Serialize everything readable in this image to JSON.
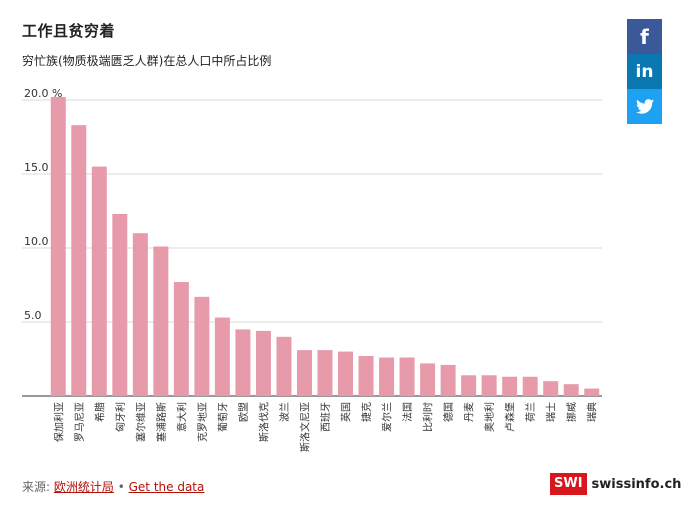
{
  "title": "工作且贫穷着",
  "subtitle": "穷忙族(物质极端匮乏人群)在总人口中所占比例",
  "source": {
    "label": "来源:",
    "link_text": "欧洲统计局",
    "separator": "•",
    "data_link_text": "Get the data"
  },
  "share": {
    "facebook_glyph": "f",
    "linkedin_glyph": "in"
  },
  "brand": {
    "logo_text": "SWI",
    "name": "swissinfo.ch"
  },
  "colors": {
    "bar": "#e79aaa",
    "grid": "#d9d9d9",
    "axis": "#333333"
  },
  "chart_data": {
    "type": "bar",
    "title": "工作且贫穷着",
    "subtitle": "穷忙族(物质极端匮乏人群)在总人口中所占比例",
    "categories": [
      "保加利亚",
      "罗马尼亚",
      "希腊",
      "匈牙利",
      "塞尔维亚",
      "塞浦路斯",
      "意大利",
      "克罗地亚",
      "葡萄牙",
      "欧盟",
      "斯洛伐克",
      "波兰",
      "斯洛文尼亚",
      "西班牙",
      "英国",
      "捷克",
      "爱尔兰",
      "法国",
      "比利时",
      "德国",
      "丹麦",
      "奥地利",
      "卢森堡",
      "荷兰",
      "瑞士",
      "挪威",
      "瑞典"
    ],
    "values": [
      20.2,
      18.3,
      15.5,
      12.3,
      11.0,
      10.1,
      7.7,
      6.7,
      5.3,
      4.5,
      4.4,
      4.0,
      3.1,
      3.1,
      3.0,
      2.7,
      2.6,
      2.6,
      2.2,
      2.1,
      1.4,
      1.4,
      1.3,
      1.3,
      1.0,
      0.8,
      0.5
    ],
    "ylim": [
      0,
      20
    ],
    "yticks": [
      5.0,
      10.0,
      15.0,
      20.0
    ],
    "ytick_labels": [
      "5.0",
      "10.0",
      "15.0",
      "20.0 %"
    ],
    "grid": true
  }
}
